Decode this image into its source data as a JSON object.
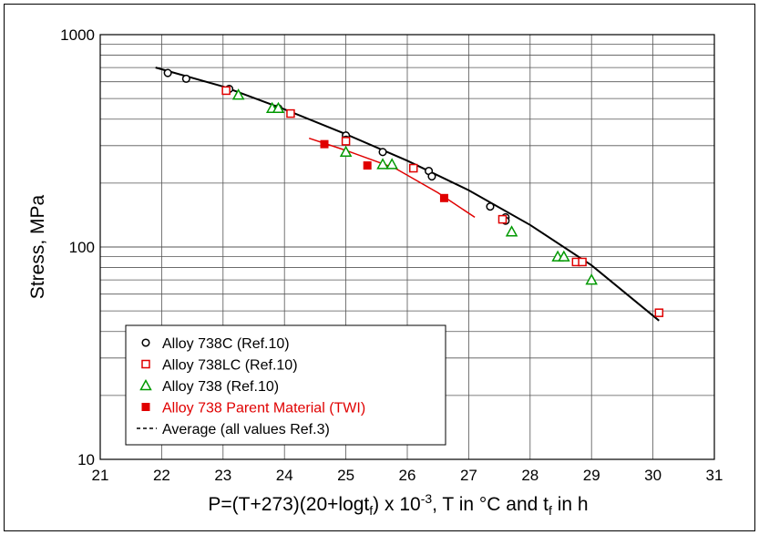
{
  "chart_data": {
    "type": "scatter",
    "title": "",
    "xlabel": "P=(T+273)(20+logt",
    "xlabel_sub": "f",
    "xlabel_mid": ") x 10",
    "xlabel_sup": "-3",
    "xlabel_tail": ", T in °C and t",
    "xlabel_sub2": "f",
    "xlabel_end": " in h",
    "ylabel": "Stress, MPa",
    "xlim": [
      21,
      31
    ],
    "ylim": [
      10,
      1000
    ],
    "yscale": "log",
    "grid": true,
    "legend_position": "bottom-left",
    "x_ticks": [
      "21",
      "22",
      "23",
      "24",
      "25",
      "26",
      "27",
      "28",
      "29",
      "30",
      "31"
    ],
    "y_ticks": [
      "10",
      "100",
      "1000"
    ],
    "series": [
      {
        "name": "Alloy 738C (Ref.10)",
        "marker": "circle-open",
        "color": "#000000",
        "points": [
          [
            22.1,
            660
          ],
          [
            22.4,
            620
          ],
          [
            23.1,
            555
          ],
          [
            23.9,
            450
          ],
          [
            25.0,
            335
          ],
          [
            25.0,
            320
          ],
          [
            25.6,
            280
          ],
          [
            26.35,
            228
          ],
          [
            26.4,
            215
          ],
          [
            27.35,
            155
          ],
          [
            27.6,
            138
          ],
          [
            27.6,
            133
          ]
        ]
      },
      {
        "name": "Alloy 738LC (Ref.10)",
        "marker": "square-open",
        "color": "#e00000",
        "points": [
          [
            23.05,
            545
          ],
          [
            24.1,
            425
          ],
          [
            25.0,
            315
          ],
          [
            26.1,
            235
          ],
          [
            27.55,
            135
          ],
          [
            28.75,
            85
          ],
          [
            28.85,
            85
          ],
          [
            30.1,
            49
          ]
        ]
      },
      {
        "name": "Alloy 738 (Ref.10)",
        "marker": "triangle-open",
        "color": "#009900",
        "points": [
          [
            23.25,
            520
          ],
          [
            23.8,
            450
          ],
          [
            23.9,
            450
          ],
          [
            25.0,
            280
          ],
          [
            25.6,
            245
          ],
          [
            25.75,
            245
          ],
          [
            27.7,
            118
          ],
          [
            28.45,
            90
          ],
          [
            28.55,
            90
          ],
          [
            29.0,
            70
          ]
        ]
      },
      {
        "name": "Alloy 738 Parent Material (TWI)",
        "marker": "square-filled",
        "color": "#e00000",
        "points": [
          [
            24.65,
            305
          ],
          [
            25.35,
            242
          ],
          [
            26.6,
            170
          ]
        ],
        "fit": [
          [
            24.4,
            325
          ],
          [
            25.0,
            285
          ],
          [
            25.8,
            235
          ],
          [
            26.5,
            180
          ],
          [
            27.1,
            138
          ]
        ]
      },
      {
        "name": "Average (all values Ref.3)",
        "marker": "line-dashed",
        "color": "#000000",
        "line": [
          [
            21.9,
            700
          ],
          [
            23.0,
            570
          ],
          [
            24.0,
            445
          ],
          [
            25.0,
            340
          ],
          [
            26.0,
            255
          ],
          [
            27.0,
            185
          ],
          [
            28.0,
            127
          ],
          [
            29.0,
            82
          ],
          [
            30.1,
            45
          ]
        ]
      }
    ]
  }
}
